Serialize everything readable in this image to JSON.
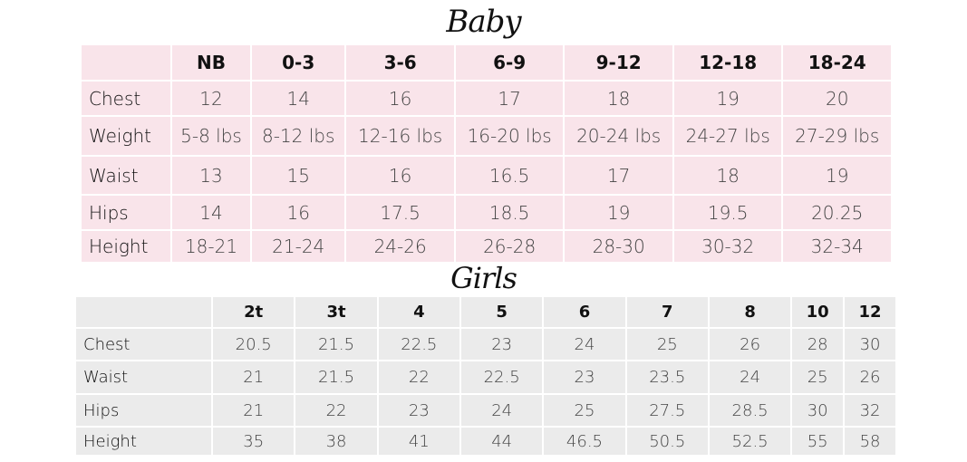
{
  "baby": {
    "title": "Baby",
    "columns": [
      "",
      "NB",
      "0-3",
      "3-6",
      "6-9",
      "9-12",
      "12-18",
      "18-24"
    ],
    "rows": [
      {
        "label": "Chest",
        "values": [
          "12",
          "14",
          "16",
          "17",
          "18",
          "19",
          "20"
        ]
      },
      {
        "label": "Weight",
        "values": [
          "5-8 lbs",
          "8-12 lbs",
          "12-16 lbs",
          "16-20 lbs",
          "20-24 lbs",
          "24-27 lbs",
          "27-29 lbs"
        ]
      },
      {
        "label": "Waist",
        "values": [
          "13",
          "15",
          "16",
          "16.5",
          "17",
          "18",
          "19"
        ]
      },
      {
        "label": "Hips",
        "values": [
          "14",
          "16",
          "17.5",
          "18.5",
          "19",
          "19.5",
          "20.25"
        ]
      },
      {
        "label": "Height",
        "values": [
          "18-21",
          "21-24",
          "24-26",
          "26-28",
          "28-30",
          "30-32",
          "32-34"
        ]
      }
    ],
    "background_color": "#f9e4ea"
  },
  "girls": {
    "title": "Girls",
    "columns": [
      "",
      "2t",
      "3t",
      "4",
      "5",
      "6",
      "7",
      "8",
      "10",
      "12"
    ],
    "rows": [
      {
        "label": "Chest",
        "values": [
          "20.5",
          "21.5",
          "22.5",
          "23",
          "24",
          "25",
          "26",
          "28",
          "30"
        ]
      },
      {
        "label": "Waist",
        "values": [
          "21",
          "21.5",
          "22",
          "22.5",
          "23",
          "23.5",
          "24",
          "25",
          "26"
        ]
      },
      {
        "label": "Hips",
        "values": [
          "21",
          "22",
          "23",
          "24",
          "25",
          "27.5",
          "28.5",
          "30",
          "32"
        ]
      },
      {
        "label": "Height",
        "values": [
          "35",
          "38",
          "41",
          "44",
          "46.5",
          "50.5",
          "52.5",
          "55",
          "58"
        ]
      }
    ],
    "background_color": "#ebebeb"
  }
}
